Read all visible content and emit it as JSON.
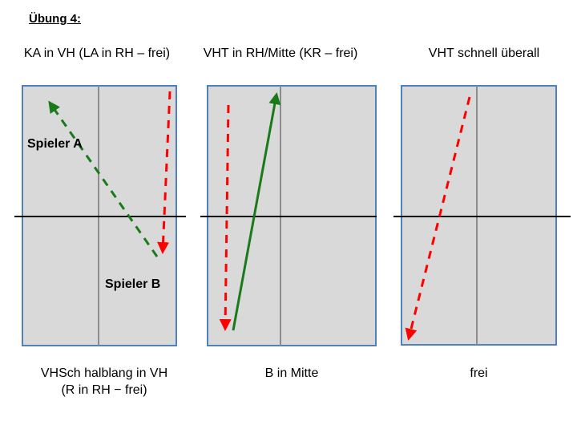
{
  "title": "Übung 4:",
  "panels": [
    {
      "heading": "KA in VH (LA in RH – frei)",
      "caption_lines": [
        "VHSch halblang in VH",
        "(R in RH − frei)"
      ],
      "labels": [
        "Spieler A",
        "Spieler B"
      ]
    },
    {
      "heading": "VHT in RH/Mitte (KR – frei)",
      "caption_lines": [
        "B in Mitte"
      ]
    },
    {
      "heading": "VHT schnell überall",
      "caption_lines": [
        "frei"
      ]
    }
  ],
  "colors": {
    "court_fill": "#d9d9d9",
    "court_border": "#4f81bd",
    "center_line": "#8c8c8c",
    "net": "#000000",
    "green": "#1a7a1a",
    "red": "#ff0000"
  }
}
